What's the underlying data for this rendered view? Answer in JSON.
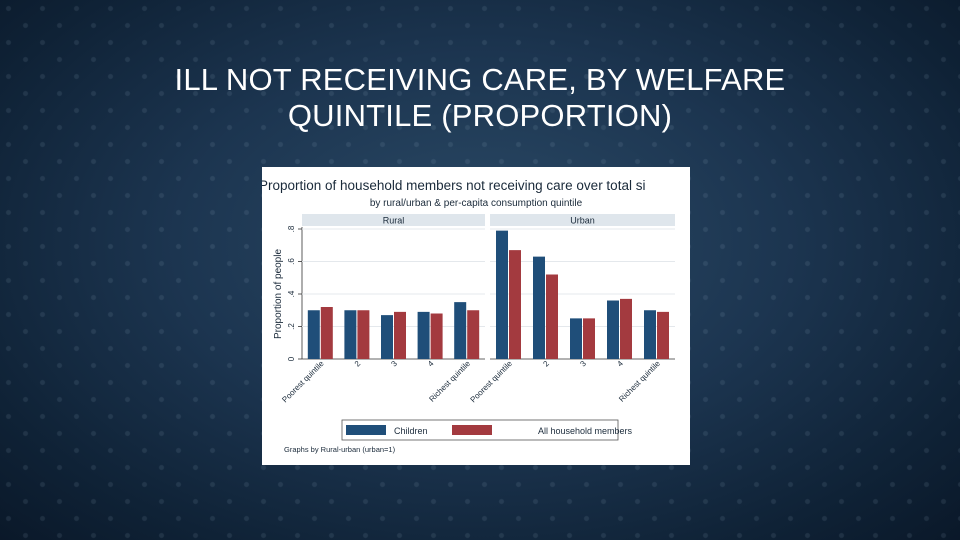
{
  "slide": {
    "title_line1": "ILL NOT RECEIVING CARE, BY WELFARE",
    "title_line2": "QUINTILE (PROPORTION)"
  },
  "chart_data": {
    "type": "bar",
    "title": "Proportion of household members not receiving care over total si",
    "subtitle": "by rural/urban & per-capita consumption quintile",
    "ylabel": "Proportion of people",
    "ylim": [
      0,
      0.8
    ],
    "yticks": [
      "0",
      ".2",
      ".4",
      ".6",
      ".8"
    ],
    "yticks_values": [
      0,
      0.2,
      0.4,
      0.6,
      0.8
    ],
    "categories": [
      "Poorest quintile",
      "2",
      "3",
      "4",
      "Richest quintile"
    ],
    "grid": true,
    "legend_position": "bottom",
    "note": "Graphs by Rural-urban (urban=1)",
    "colors": {
      "Children": "#1f4e79",
      "All household members": "#a33a3f"
    },
    "panels": [
      {
        "name": "Rural",
        "series": [
          {
            "name": "Children",
            "values": [
              0.3,
              0.3,
              0.27,
              0.29,
              0.35
            ]
          },
          {
            "name": "All household members",
            "values": [
              0.32,
              0.3,
              0.29,
              0.28,
              0.3
            ]
          }
        ]
      },
      {
        "name": "Urban",
        "series": [
          {
            "name": "Children",
            "values": [
              0.79,
              0.63,
              0.25,
              0.36,
              0.3
            ]
          },
          {
            "name": "All household members",
            "values": [
              0.67,
              0.52,
              0.25,
              0.37,
              0.29
            ]
          }
        ]
      }
    ]
  }
}
